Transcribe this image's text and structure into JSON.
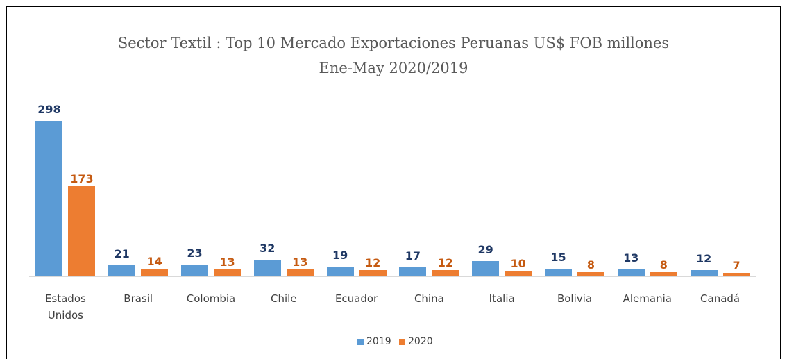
{
  "chart_data": {
    "type": "bar",
    "title": "Sector Textil : Top 10 Mercado Exportaciones Peruanas US$ FOB millones",
    "subtitle": "Ene-May 2020/2019",
    "categories": [
      "Estados Unidos",
      "Brasil",
      "Colombia",
      "Chile",
      "Ecuador",
      "China",
      "Italia",
      "Bolivia",
      "Alemania",
      "Canadá"
    ],
    "series": [
      {
        "name": "2019",
        "color": "#5b9bd5",
        "label_color": "#1f3864",
        "values": [
          298,
          21,
          23,
          32,
          19,
          17,
          29,
          15,
          13,
          12
        ]
      },
      {
        "name": "2020",
        "color": "#ed7d31",
        "label_color": "#c55a11",
        "values": [
          173,
          14,
          13,
          13,
          12,
          12,
          10,
          8,
          8,
          7
        ]
      }
    ],
    "legend": "bottom"
  }
}
